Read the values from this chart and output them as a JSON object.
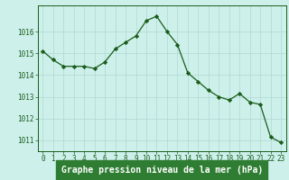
{
  "x": [
    0,
    1,
    2,
    3,
    4,
    5,
    6,
    7,
    8,
    9,
    10,
    11,
    12,
    13,
    14,
    15,
    16,
    17,
    18,
    19,
    20,
    21,
    22,
    23
  ],
  "y": [
    1015.1,
    1014.7,
    1014.4,
    1014.4,
    1014.4,
    1014.3,
    1014.6,
    1015.2,
    1015.5,
    1015.8,
    1016.5,
    1016.7,
    1016.0,
    1015.4,
    1014.1,
    1013.7,
    1013.3,
    1013.0,
    1012.85,
    1013.15,
    1012.75,
    1012.65,
    1011.15,
    1010.9
  ],
  "line_color": "#1a5c1a",
  "marker": "D",
  "marker_size": 2.2,
  "bg_color": "#cdf0eb",
  "grid_color": "#b0d8d2",
  "title": "Graphe pression niveau de la mer (hPa)",
  "ylim": [
    1010.5,
    1017.2
  ],
  "xlim": [
    -0.5,
    23.5
  ],
  "yticks": [
    1011,
    1012,
    1013,
    1014,
    1015,
    1016
  ],
  "xticks": [
    0,
    1,
    2,
    3,
    4,
    5,
    6,
    7,
    8,
    9,
    10,
    11,
    12,
    13,
    14,
    15,
    16,
    17,
    18,
    19,
    20,
    21,
    22,
    23
  ],
  "title_fontsize": 7.0,
  "tick_fontsize": 5.5,
  "title_color": "#1a5c1a",
  "tick_color": "#1a5c1a",
  "spine_color": "#1a5c1a",
  "bottom_bar_color": "#2e7d32"
}
